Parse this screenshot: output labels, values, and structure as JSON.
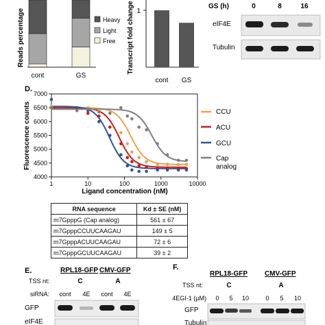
{
  "panel_b": {
    "ylabel": "Reads percentage",
    "categories": [
      "cont",
      "GS"
    ],
    "legend": [
      "Heavy",
      "Light",
      "Free"
    ],
    "legend_colors": [
      "#555555",
      "#a6a6a6",
      "#f4f1df"
    ]
  },
  "panel_c": {
    "ylabel": "Transcript fold change",
    "ticks": [
      "1"
    ],
    "categories": [
      "cont",
      "GS"
    ]
  },
  "panel_wb_top": {
    "header": "GS (h)",
    "timepoints": [
      "0",
      "8",
      "16"
    ],
    "rows": [
      "eIF4E",
      "Tubulin"
    ]
  },
  "panel_d": {
    "letter": "D.",
    "ylabel": "Fluorescence counts",
    "xlabel": "Ligand concentration (nM)",
    "yticks": [
      "4000",
      "4500",
      "5000",
      "5500",
      "6000",
      "6500",
      "7000"
    ],
    "xticks": [
      "1",
      "10",
      "100",
      "1000",
      "10000"
    ],
    "legend": [
      "CCU",
      "ACU",
      "GCU",
      "Cap",
      "analog"
    ],
    "table": {
      "headers": [
        "RNA sequence",
        "Kd ± SE (nM)"
      ],
      "rows": [
        [
          "m7GpppG (Cap analog)",
          "561 ± 67"
        ],
        [
          "m7GpppCCUUCAAGAU",
          "149 ± 5"
        ],
        [
          "m7GpppACUUCAAGAU",
          "72 ± 6"
        ],
        [
          "m7GpppGCUUCAAGAU",
          "39 ± 2"
        ]
      ]
    }
  },
  "panel_e": {
    "letter": "E.",
    "constructs": [
      "RPL18-GFP",
      "CMV-GFP"
    ],
    "tss_label": "TSS nt:",
    "tss_values": [
      "C",
      "A"
    ],
    "sirna_label": "siRNA:",
    "sirna_values": [
      "cont",
      "4E",
      "cont",
      "4E"
    ],
    "rows": [
      "GFP",
      "eIF4E"
    ]
  },
  "panel_f": {
    "letter": "F.",
    "constructs": [
      "RPL18-GFP",
      "CMV-GFP"
    ],
    "tss_label": "TSS nt:",
    "tss_values": [
      "C",
      "A"
    ],
    "dose_label": "4EGI-1 (µM)",
    "dose_values": [
      "0",
      "5",
      "10",
      "0",
      "5",
      "10"
    ],
    "rows": [
      "GFP",
      "Tubulin"
    ]
  },
  "chart_data": [
    {
      "type": "bar",
      "stacked": true,
      "categories": [
        "cont",
        "GS"
      ],
      "series": [
        {
          "name": "Free",
          "values": [
            5,
            30
          ]
        },
        {
          "name": "Light",
          "values": [
            45,
            43
          ]
        },
        {
          "name": "Heavy",
          "values": [
            50,
            27
          ]
        }
      ],
      "ylabel": "Reads percentage",
      "ylim": [
        0,
        100
      ],
      "legend_placement": "right"
    },
    {
      "type": "bar",
      "categories": [
        "cont",
        "GS"
      ],
      "values": [
        1.0,
        0.78
      ],
      "ylabel": "Transcript fold change",
      "ylim": [
        0,
        1.2
      ]
    },
    {
      "type": "scatter",
      "xscale": "log",
      "xlim": [
        1,
        10000
      ],
      "ylim": [
        4000,
        7000
      ],
      "xlabel": "Ligand concentration (nM)",
      "ylabel": "Fluorescence counts",
      "legend_placement": "right",
      "grid": false,
      "series": [
        {
          "name": "CCU",
          "color": "#f0a04b",
          "kd": 149,
          "top": 6500,
          "bottom": 4450,
          "x": [
            1,
            5,
            10,
            20,
            40,
            80,
            120,
            160,
            250,
            400,
            800,
            1500,
            3000,
            5000
          ],
          "y": [
            6550,
            6450,
            6500,
            6400,
            6300,
            5600,
            5200,
            4900,
            4700,
            4550,
            4450,
            4450,
            4450,
            4450
          ]
        },
        {
          "name": "ACU",
          "color": "#c41f1f",
          "kd": 72,
          "top": 6500,
          "bottom": 4350,
          "x": [
            1,
            5,
            10,
            20,
            40,
            80,
            120,
            160,
            250,
            400,
            800,
            1500,
            3000,
            5000
          ],
          "y": [
            6500,
            6400,
            6300,
            6200,
            5800,
            5200,
            4700,
            4550,
            4400,
            4350,
            4300,
            4300,
            4300,
            4300
          ]
        },
        {
          "name": "GCU",
          "color": "#2f5597",
          "kd": 39,
          "top": 6550,
          "bottom": 4300,
          "x": [
            1,
            5,
            10,
            20,
            40,
            80,
            120,
            160,
            250,
            400,
            800,
            1500,
            3000,
            5000
          ],
          "y": [
            6800,
            6500,
            6400,
            6000,
            5500,
            4800,
            4400,
            4250,
            4200,
            4200,
            4250,
            4250,
            4250,
            4250
          ]
        },
        {
          "name": "Cap analog",
          "color": "#7f7f7f",
          "kd": 561,
          "top": 6450,
          "bottom": 4550,
          "x": [
            1,
            5,
            10,
            20,
            40,
            80,
            120,
            160,
            250,
            400,
            800,
            1500,
            3000,
            5000
          ],
          "y": [
            6500,
            6400,
            6450,
            6350,
            6300,
            6500,
            6200,
            6100,
            5800,
            5700,
            5200,
            4800,
            4600,
            4600
          ]
        }
      ]
    }
  ]
}
